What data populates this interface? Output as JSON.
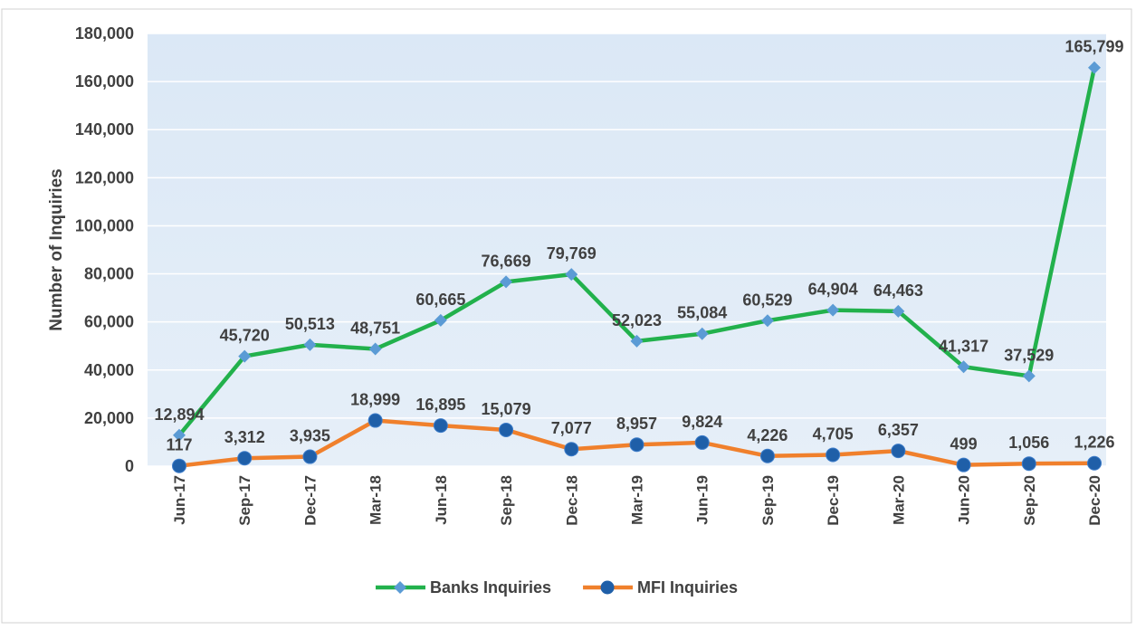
{
  "chart_data": {
    "type": "line",
    "ylabel": "Number of Inquiries",
    "categories": [
      "Jun-17",
      "Sep-17",
      "Dec-17",
      "Mar-18",
      "Jun-18",
      "Sep-18",
      "Dec-18",
      "Mar-19",
      "Jun-19",
      "Sep-19",
      "Dec-19",
      "Mar-20",
      "Jun-20",
      "Sep-20",
      "Dec-20"
    ],
    "series": [
      {
        "name": "Banks Inquiries",
        "color": "#22b14c",
        "marker": "diamond",
        "marker_color": "#5b9bd5",
        "values": [
          12894,
          45720,
          50513,
          48751,
          60665,
          76669,
          79769,
          52023,
          55084,
          60529,
          64904,
          64463,
          41317,
          37529,
          165799
        ],
        "value_labels": [
          "12,894",
          "45,720",
          "50,513",
          "48,751",
          "60,665",
          "76,669",
          "79,769",
          "52,023",
          "55,084",
          "60,529",
          "64,904",
          "64,463",
          "41,317",
          "37,529",
          "165,799"
        ]
      },
      {
        "name": "MFI Inquiries",
        "color": "#f0802c",
        "marker": "circle",
        "marker_color": "#1f5fa8",
        "values": [
          117,
          3312,
          3935,
          18999,
          16895,
          15079,
          7077,
          8957,
          9824,
          4226,
          4705,
          6357,
          499,
          1056,
          1226
        ],
        "value_labels": [
          "117",
          "3,312",
          "3,935",
          "18,999",
          "16,895",
          "15,079",
          "7,077",
          "8,957",
          "9,824",
          "4,226",
          "4,705",
          "6,357",
          "499",
          "1,056",
          "1,226"
        ]
      }
    ],
    "ylim": [
      0,
      180000
    ],
    "yticks": [
      0,
      {
        "value": 20000,
        "label": "20,000"
      },
      {
        "value": 40000,
        "label": "40,000"
      },
      {
        "value": 60000,
        "label": "60,000"
      },
      {
        "value": 80000,
        "label": "80,000"
      },
      {
        "value": 100000,
        "label": "100,000"
      },
      {
        "value": 120000,
        "label": "120,000"
      },
      {
        "value": 140000,
        "label": "140,000"
      },
      {
        "value": 160000,
        "label": "160,000"
      },
      {
        "value": 180000,
        "label": "180,000"
      }
    ],
    "grid": true,
    "legend": "bottom"
  }
}
